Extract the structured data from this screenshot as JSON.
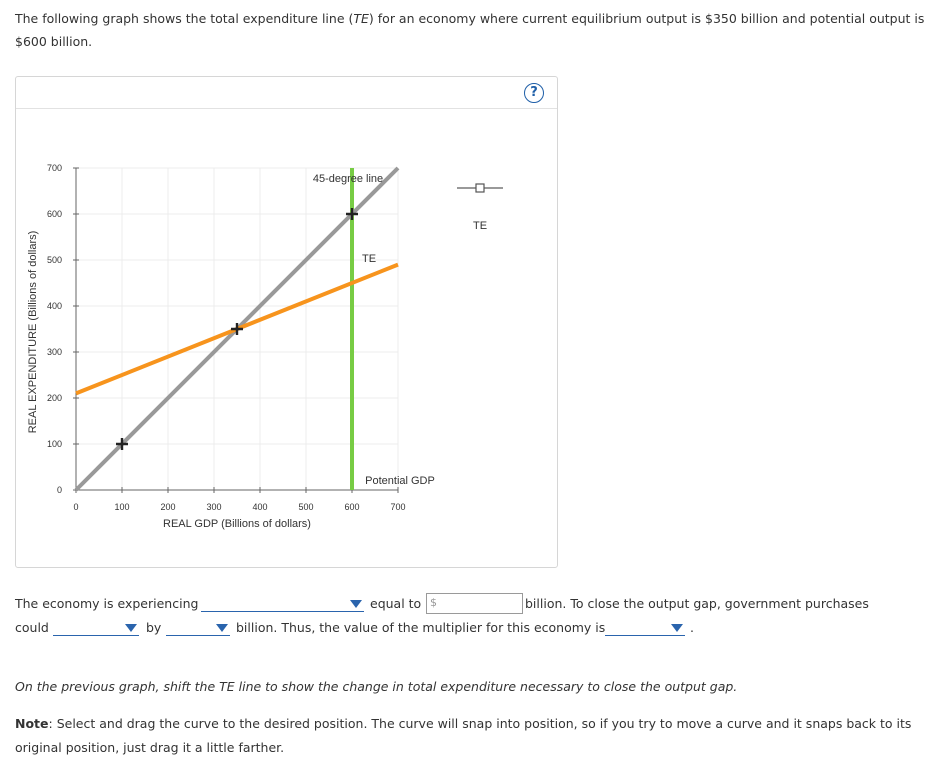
{
  "intro": {
    "part1": "The following graph shows the total expenditure line (",
    "te_abbrev": "TE",
    "part2": ") for an economy where current equilibrium output is $350 billion and potential output is $600 billion."
  },
  "graph": {
    "help_label": "?",
    "legend_label": "TE",
    "curve_labels": {
      "forty_five": "45-degree line",
      "te": "TE",
      "potential": "Potential GDP"
    },
    "x_ticks": [
      "0",
      "100",
      "200",
      "300",
      "400",
      "500",
      "600",
      "700"
    ],
    "y_ticks": [
      "0",
      "100",
      "200",
      "300",
      "400",
      "500",
      "600",
      "700"
    ],
    "colors": {
      "te_line": "#f7941d",
      "forty_five_line": "#999999",
      "potential_line": "#77cc44",
      "grid": "#ececec"
    }
  },
  "chart_data": {
    "type": "line",
    "xlabel": "REAL GDP (Billions of dollars)",
    "ylabel": "REAL EXPENDITURE (Billions of dollars)",
    "xlim": [
      0,
      700
    ],
    "ylim": [
      0,
      700
    ],
    "grid": true,
    "series": [
      {
        "name": "45-degree line",
        "x": [
          0,
          700
        ],
        "y": [
          0,
          700
        ],
        "color": "#999999",
        "points": [
          [
            100,
            100
          ],
          [
            350,
            350
          ],
          [
            600,
            600
          ]
        ]
      },
      {
        "name": "TE",
        "x": [
          0,
          700
        ],
        "y": [
          210,
          490
        ],
        "color": "#f7941d"
      },
      {
        "name": "Potential GDP",
        "x": [
          600,
          600
        ],
        "y": [
          0,
          700
        ],
        "color": "#77cc44"
      }
    ],
    "legend": "right"
  },
  "question": {
    "s1": "The economy is experiencing",
    "s2": "equal to",
    "currency": "$",
    "amount_value": "",
    "s3": "billion. To close the output gap, government purchases",
    "s4": "could",
    "s5": "by",
    "s6": "billion. Thus, the value of the multiplier for this economy is",
    "s7": "."
  },
  "instruction": "On the previous graph, shift the TE line to show the change in total expenditure necessary to close the output gap.",
  "note": {
    "label": "Note",
    "text": ": Select and drag the curve to the desired position. The curve will snap into position, so if you try to move a curve and it snaps back to its original position, just drag it a little farther."
  }
}
